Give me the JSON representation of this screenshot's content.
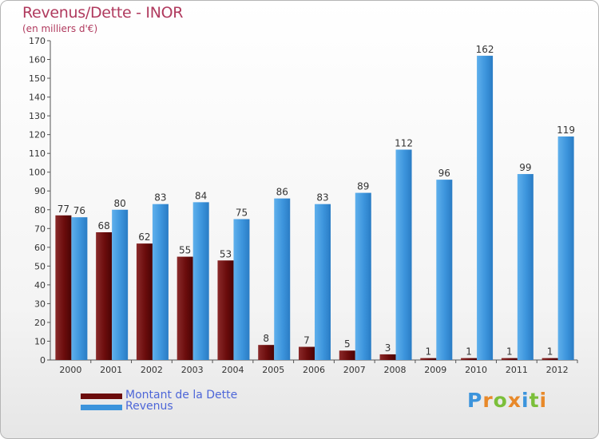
{
  "title": "Revenus/Dette - INOR",
  "subtitle": "(en milliers d'€)",
  "colors": {
    "dette": "#6b0c0c",
    "revenus": "#3c94dc",
    "title": "#b03a5e",
    "legend_text": "#4d66d8"
  },
  "legend": [
    {
      "label": "Montant de la Dette",
      "color": "#6b0c0c"
    },
    {
      "label": "Revenus",
      "color": "#3c94dc"
    }
  ],
  "logo": {
    "text": "Proxiti"
  },
  "chart_data": {
    "type": "bar",
    "title": "Revenus/Dette - INOR",
    "subtitle": "(en milliers d'€)",
    "categories": [
      "2000",
      "2001",
      "2002",
      "2003",
      "2004",
      "2005",
      "2006",
      "2007",
      "2008",
      "2009",
      "2010",
      "2011",
      "2012"
    ],
    "series": [
      {
        "name": "Montant de la Dette",
        "values": [
          77,
          68,
          62,
          55,
          53,
          8,
          7,
          5,
          3,
          1,
          1,
          1,
          1
        ]
      },
      {
        "name": "Revenus",
        "values": [
          76,
          80,
          83,
          84,
          75,
          86,
          83,
          89,
          112,
          96,
          162,
          99,
          119
        ]
      }
    ],
    "ylim": [
      0,
      170
    ],
    "yticks": [
      0,
      10,
      20,
      30,
      40,
      50,
      60,
      70,
      80,
      90,
      100,
      110,
      120,
      130,
      140,
      150,
      160,
      170
    ],
    "grid": false,
    "legend_position": "bottom-left"
  }
}
